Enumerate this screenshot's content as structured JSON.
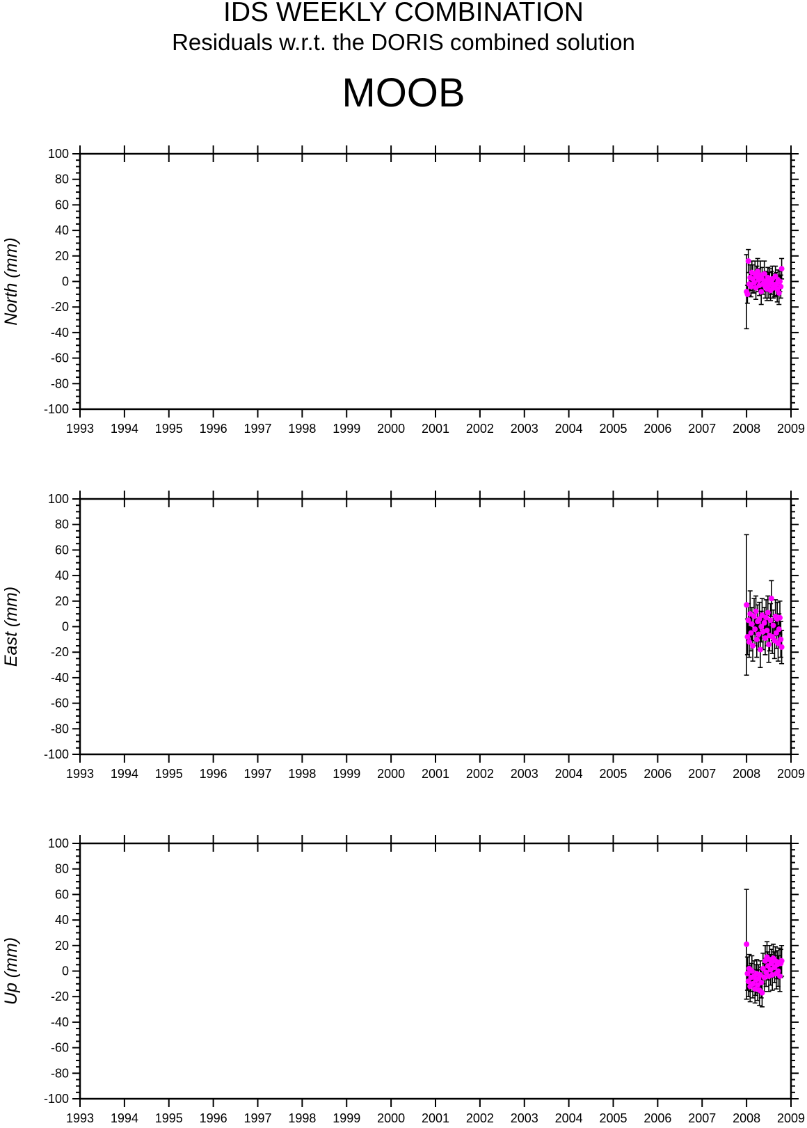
{
  "header": {
    "title": "IDS WEEKLY COMBINATION",
    "subtitle": "Residuals w.r.t. the DORIS combined solution",
    "station": "MOOB"
  },
  "colors": {
    "point": "#ff00ff",
    "error_bar": "#000000",
    "axis": "#000000"
  },
  "chart_data": [
    {
      "type": "scatter",
      "ylabel": "North (mm)",
      "xlim": [
        1993,
        2009
      ],
      "ylim": [
        -100,
        100
      ],
      "x_ticks": [
        "1993",
        "1994",
        "1995",
        "1996",
        "1997",
        "1998",
        "1999",
        "2000",
        "2001",
        "2002",
        "2003",
        "2004",
        "2005",
        "2006",
        "2007",
        "2008",
        "2009"
      ],
      "y_ticks": [
        "100",
        "80",
        "60",
        "40",
        "20",
        "0",
        "-20",
        "-40",
        "-60",
        "-80",
        "-100"
      ],
      "grid": false,
      "points": [
        {
          "x": 2008.0,
          "y": -8,
          "err": 29
        },
        {
          "x": 2008.02,
          "y": -10,
          "err": 7
        },
        {
          "x": 2008.04,
          "y": 16,
          "err": 9
        },
        {
          "x": 2008.06,
          "y": -2,
          "err": 9
        },
        {
          "x": 2008.08,
          "y": 3,
          "err": 10
        },
        {
          "x": 2008.1,
          "y": -4,
          "err": 8
        },
        {
          "x": 2008.12,
          "y": 7,
          "err": 9
        },
        {
          "x": 2008.14,
          "y": 2,
          "err": 11
        },
        {
          "x": 2008.17,
          "y": -1,
          "err": 8
        },
        {
          "x": 2008.19,
          "y": 6,
          "err": 10
        },
        {
          "x": 2008.21,
          "y": -5,
          "err": 9
        },
        {
          "x": 2008.23,
          "y": 4,
          "err": 8
        },
        {
          "x": 2008.25,
          "y": 8,
          "err": 10
        },
        {
          "x": 2008.27,
          "y": 1,
          "err": 9
        },
        {
          "x": 2008.29,
          "y": -3,
          "err": 8
        },
        {
          "x": 2008.31,
          "y": 5,
          "err": 11
        },
        {
          "x": 2008.33,
          "y": -8,
          "err": 10
        },
        {
          "x": 2008.35,
          "y": 2,
          "err": 9
        },
        {
          "x": 2008.37,
          "y": -2,
          "err": 8
        },
        {
          "x": 2008.4,
          "y": 6,
          "err": 10
        },
        {
          "x": 2008.42,
          "y": -4,
          "err": 9
        },
        {
          "x": 2008.44,
          "y": 0,
          "err": 8
        },
        {
          "x": 2008.46,
          "y": -6,
          "err": 9
        },
        {
          "x": 2008.48,
          "y": 3,
          "err": 8
        },
        {
          "x": 2008.5,
          "y": -3,
          "err": 10
        },
        {
          "x": 2008.52,
          "y": 1,
          "err": 9
        },
        {
          "x": 2008.54,
          "y": -7,
          "err": 8
        },
        {
          "x": 2008.56,
          "y": -1,
          "err": 9
        },
        {
          "x": 2008.58,
          "y": 2,
          "err": 10
        },
        {
          "x": 2008.6,
          "y": -5,
          "err": 8
        },
        {
          "x": 2008.63,
          "y": -3,
          "err": 9
        },
        {
          "x": 2008.65,
          "y": 4,
          "err": 8
        },
        {
          "x": 2008.67,
          "y": -2,
          "err": 9
        },
        {
          "x": 2008.69,
          "y": -6,
          "err": 10
        },
        {
          "x": 2008.71,
          "y": 1,
          "err": 8
        },
        {
          "x": 2008.73,
          "y": -9,
          "err": 9
        },
        {
          "x": 2008.75,
          "y": 0,
          "err": 8
        },
        {
          "x": 2008.77,
          "y": -4,
          "err": 9
        },
        {
          "x": 2008.79,
          "y": 10,
          "err": 8
        }
      ]
    },
    {
      "type": "scatter",
      "ylabel": "East (mm)",
      "xlim": [
        1993,
        2009
      ],
      "ylim": [
        -100,
        100
      ],
      "x_ticks": [
        "1993",
        "1994",
        "1995",
        "1996",
        "1997",
        "1998",
        "1999",
        "2000",
        "2001",
        "2002",
        "2003",
        "2004",
        "2005",
        "2006",
        "2007",
        "2008",
        "2009"
      ],
      "y_ticks": [
        "100",
        "80",
        "60",
        "40",
        "20",
        "0",
        "-20",
        "-40",
        "-60",
        "-80",
        "-100"
      ],
      "grid": false,
      "points": [
        {
          "x": 2008.0,
          "y": 17,
          "err": 55
        },
        {
          "x": 2008.02,
          "y": -8,
          "err": 14
        },
        {
          "x": 2008.04,
          "y": 5,
          "err": 13
        },
        {
          "x": 2008.06,
          "y": -12,
          "err": 12
        },
        {
          "x": 2008.08,
          "y": 10,
          "err": 18
        },
        {
          "x": 2008.1,
          "y": -5,
          "err": 14
        },
        {
          "x": 2008.12,
          "y": 2,
          "err": 13
        },
        {
          "x": 2008.14,
          "y": -15,
          "err": 12
        },
        {
          "x": 2008.17,
          "y": 8,
          "err": 14
        },
        {
          "x": 2008.19,
          "y": -2,
          "err": 13
        },
        {
          "x": 2008.21,
          "y": 12,
          "err": 12
        },
        {
          "x": 2008.23,
          "y": -10,
          "err": 14
        },
        {
          "x": 2008.25,
          "y": 4,
          "err": 13
        },
        {
          "x": 2008.27,
          "y": -6,
          "err": 12
        },
        {
          "x": 2008.29,
          "y": 6,
          "err": 13
        },
        {
          "x": 2008.31,
          "y": -18,
          "err": 14
        },
        {
          "x": 2008.33,
          "y": 0,
          "err": 12
        },
        {
          "x": 2008.35,
          "y": 9,
          "err": 13
        },
        {
          "x": 2008.37,
          "y": -4,
          "err": 14
        },
        {
          "x": 2008.4,
          "y": 3,
          "err": 12
        },
        {
          "x": 2008.42,
          "y": -9,
          "err": 13
        },
        {
          "x": 2008.44,
          "y": 7,
          "err": 14
        },
        {
          "x": 2008.46,
          "y": -3,
          "err": 12
        },
        {
          "x": 2008.48,
          "y": 11,
          "err": 13
        },
        {
          "x": 2008.5,
          "y": -14,
          "err": 14
        },
        {
          "x": 2008.52,
          "y": -7,
          "err": 12
        },
        {
          "x": 2008.54,
          "y": 5,
          "err": 13
        },
        {
          "x": 2008.56,
          "y": 22,
          "err": 14
        },
        {
          "x": 2008.58,
          "y": -8,
          "err": 13
        },
        {
          "x": 2008.6,
          "y": 1,
          "err": 12
        },
        {
          "x": 2008.63,
          "y": -11,
          "err": 14
        },
        {
          "x": 2008.65,
          "y": 8,
          "err": 13
        },
        {
          "x": 2008.67,
          "y": -5,
          "err": 12
        },
        {
          "x": 2008.69,
          "y": 6,
          "err": 13
        },
        {
          "x": 2008.71,
          "y": -13,
          "err": 14
        },
        {
          "x": 2008.73,
          "y": -2,
          "err": 12
        },
        {
          "x": 2008.75,
          "y": 7,
          "err": 13
        },
        {
          "x": 2008.77,
          "y": -10,
          "err": 14
        },
        {
          "x": 2008.79,
          "y": -16,
          "err": 13
        }
      ]
    },
    {
      "type": "scatter",
      "ylabel": "Up (mm)",
      "xlim": [
        1993,
        2009
      ],
      "ylim": [
        -100,
        100
      ],
      "x_ticks": [
        "1993",
        "1994",
        "1995",
        "1996",
        "1997",
        "1998",
        "1999",
        "2000",
        "2001",
        "2002",
        "2003",
        "2004",
        "2005",
        "2006",
        "2007",
        "2008",
        "2009"
      ],
      "y_ticks": [
        "100",
        "80",
        "60",
        "40",
        "20",
        "0",
        "-20",
        "-40",
        "-60",
        "-80",
        "-100"
      ],
      "grid": false,
      "points": [
        {
          "x": 2008.0,
          "y": 21,
          "err": 43
        },
        {
          "x": 2008.02,
          "y": -2,
          "err": 13
        },
        {
          "x": 2008.04,
          "y": -8,
          "err": 12
        },
        {
          "x": 2008.06,
          "y": 2,
          "err": 11
        },
        {
          "x": 2008.08,
          "y": -12,
          "err": 12
        },
        {
          "x": 2008.1,
          "y": -5,
          "err": 11
        },
        {
          "x": 2008.12,
          "y": 0,
          "err": 12
        },
        {
          "x": 2008.14,
          "y": -10,
          "err": 11
        },
        {
          "x": 2008.17,
          "y": -4,
          "err": 12
        },
        {
          "x": 2008.19,
          "y": -14,
          "err": 11
        },
        {
          "x": 2008.21,
          "y": -7,
          "err": 12
        },
        {
          "x": 2008.23,
          "y": -2,
          "err": 11
        },
        {
          "x": 2008.25,
          "y": -11,
          "err": 12
        },
        {
          "x": 2008.27,
          "y": -6,
          "err": 11
        },
        {
          "x": 2008.29,
          "y": -15,
          "err": 12
        },
        {
          "x": 2008.31,
          "y": -3,
          "err": 11
        },
        {
          "x": 2008.33,
          "y": -9,
          "err": 12
        },
        {
          "x": 2008.35,
          "y": -17,
          "err": 11
        },
        {
          "x": 2008.37,
          "y": 2,
          "err": 12
        },
        {
          "x": 2008.4,
          "y": -5,
          "err": 11
        },
        {
          "x": 2008.42,
          "y": 8,
          "err": 12
        },
        {
          "x": 2008.44,
          "y": -1,
          "err": 11
        },
        {
          "x": 2008.46,
          "y": 11,
          "err": 12
        },
        {
          "x": 2008.48,
          "y": 4,
          "err": 11
        },
        {
          "x": 2008.5,
          "y": -4,
          "err": 12
        },
        {
          "x": 2008.52,
          "y": 9,
          "err": 11
        },
        {
          "x": 2008.54,
          "y": 1,
          "err": 12
        },
        {
          "x": 2008.56,
          "y": 6,
          "err": 11
        },
        {
          "x": 2008.58,
          "y": -3,
          "err": 12
        },
        {
          "x": 2008.6,
          "y": 10,
          "err": 11
        },
        {
          "x": 2008.63,
          "y": 3,
          "err": 12
        },
        {
          "x": 2008.65,
          "y": 8,
          "err": 11
        },
        {
          "x": 2008.67,
          "y": -2,
          "err": 12
        },
        {
          "x": 2008.69,
          "y": 5,
          "err": 11
        },
        {
          "x": 2008.71,
          "y": 0,
          "err": 12
        },
        {
          "x": 2008.73,
          "y": 7,
          "err": 11
        },
        {
          "x": 2008.75,
          "y": -4,
          "err": 12
        },
        {
          "x": 2008.77,
          "y": 6,
          "err": 11
        },
        {
          "x": 2008.79,
          "y": 8,
          "err": 12
        }
      ]
    }
  ]
}
